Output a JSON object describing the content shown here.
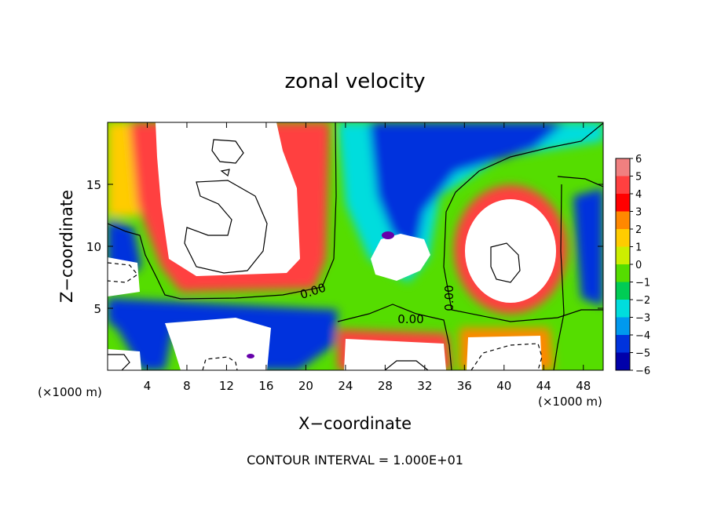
{
  "chart_data": {
    "type": "heatmap",
    "title": "zonal velocity",
    "xlabel": "X−coordinate",
    "ylabel": "Z−coordinate",
    "x_unit": "(×1000 m)",
    "xlim": [
      0,
      50
    ],
    "ylim": [
      0,
      20
    ],
    "x_ticks": [
      4,
      8,
      12,
      16,
      20,
      24,
      28,
      32,
      36,
      40,
      44,
      48
    ],
    "y_ticks": [
      5,
      10,
      15
    ],
    "x_tick_labels": [
      "4",
      "8",
      "12",
      "16",
      "20",
      "24",
      "28",
      "32",
      "36",
      "40",
      "44",
      "48"
    ],
    "y_tick_labels": [
      "5",
      "10",
      "15"
    ],
    "colorbar": {
      "levels": [
        6,
        5,
        4,
        3,
        2,
        1,
        0,
        -1,
        -2,
        -3,
        -4,
        -5,
        -6
      ],
      "labels": [
        "6",
        "5",
        "4",
        "3",
        "2",
        "1",
        "0",
        "−1",
        "−2",
        "−3",
        "−4",
        "−5",
        "−6"
      ],
      "colors": [
        "#f08080",
        "#ff4040",
        "#ff0000",
        "#ff8800",
        "#ffcc00",
        "#ccee00",
        "#55dd00",
        "#00cc55",
        "#00dddd",
        "#0099ee",
        "#0033dd",
        "#0000aa",
        "#6600aa"
      ]
    },
    "contour_labels": [
      "0.00",
      "0.00",
      "0.00"
    ],
    "contour_interval_text": "CONTOUR INTERVAL = 1.000E+01"
  }
}
